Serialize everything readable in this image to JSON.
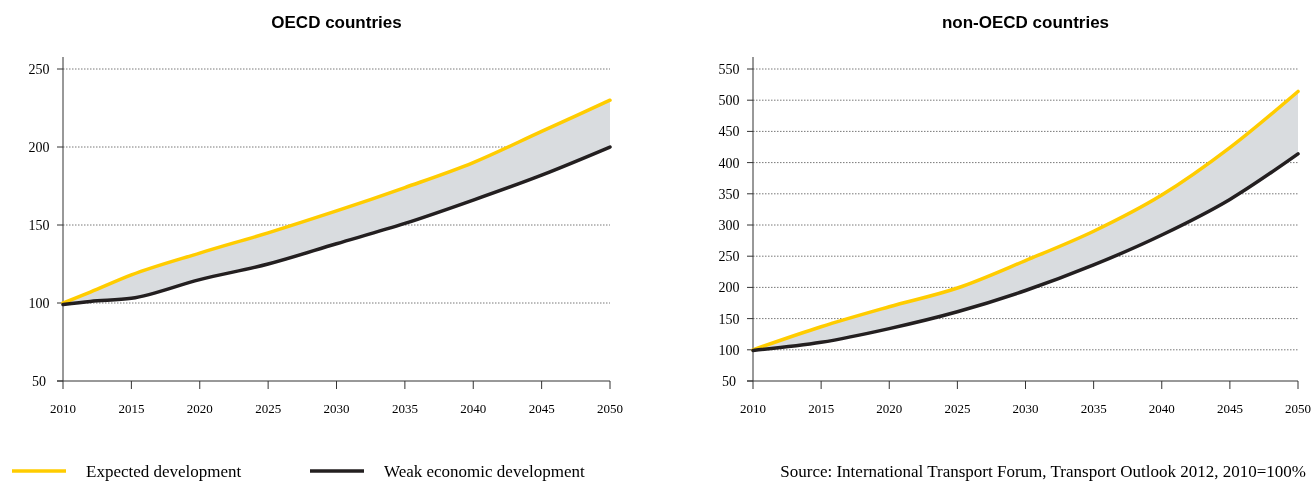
{
  "chart_data": [
    {
      "type": "line",
      "title": "OECD countries",
      "x": [
        2010,
        2012,
        2015,
        2020,
        2025,
        2030,
        2035,
        2040,
        2045,
        2050
      ],
      "xlim": [
        2010,
        2050
      ],
      "xticks": [
        2010,
        2015,
        2020,
        2025,
        2030,
        2035,
        2040,
        2045,
        2050
      ],
      "ylim": [
        50,
        250
      ],
      "yticks": [
        50,
        100,
        150,
        200,
        250
      ],
      "grid": "y",
      "legend": "bottom",
      "marker": "none",
      "line_style": "solid",
      "series": [
        {
          "name": "Expected development",
          "color": "#ffcc00",
          "values": [
            100,
            107,
            118,
            132,
            145,
            159,
            174,
            190,
            210,
            230
          ],
          "lower": [
            99,
            101,
            103,
            115,
            125,
            138,
            151,
            166,
            182,
            200
          ],
          "upper": [
            100,
            107,
            118,
            132,
            145,
            159,
            174,
            190,
            210,
            230
          ]
        },
        {
          "name": "Weak economic development",
          "color": "#231f20",
          "values": [
            99,
            101,
            103,
            115,
            125,
            138,
            151,
            166,
            182,
            200
          ]
        }
      ]
    },
    {
      "type": "line",
      "title": "non-OECD countries",
      "x": [
        2010,
        2015,
        2020,
        2025,
        2030,
        2035,
        2040,
        2045,
        2050
      ],
      "xlim": [
        2010,
        2050
      ],
      "xticks": [
        2010,
        2015,
        2020,
        2025,
        2030,
        2035,
        2040,
        2045,
        2050
      ],
      "ylim": [
        50,
        550
      ],
      "yticks": [
        50,
        100,
        150,
        200,
        250,
        300,
        350,
        400,
        450,
        500,
        550
      ],
      "grid": "y",
      "marker": "none",
      "line_style": "solid",
      "annotations": [
        "Source: International Transport Forum, Transport Outlook 2012, 2010=100%"
      ],
      "series": [
        {
          "color": "#ffcc00",
          "values": [
            100,
            137,
            169,
            199,
            243,
            290,
            348,
            424,
            514
          ],
          "lower": [
            99,
            112,
            134,
            161,
            195,
            236,
            284,
            341,
            414
          ],
          "upper": [
            100,
            137,
            169,
            199,
            243,
            290,
            348,
            424,
            514
          ]
        },
        {
          "color": "#231f20",
          "values": [
            99,
            112,
            134,
            161,
            195,
            236,
            284,
            341,
            414
          ]
        }
      ]
    }
  ]
}
